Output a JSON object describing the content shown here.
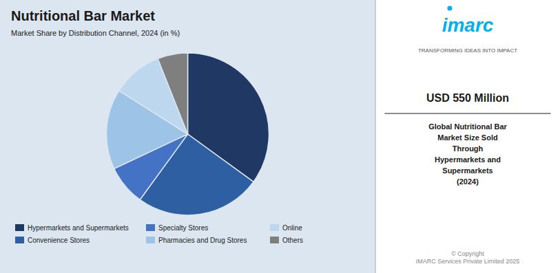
{
  "chart_data": {
    "type": "pie",
    "title": "Nutritional Bar Market",
    "subtitle": "Market Share by Distribution Channel, 2024 (in %)",
    "categories": [
      "Hypermarkets and Supermarkets",
      "Convenience Stores",
      "Specialty Stores",
      "Pharmacies and Drug Stores",
      "Online",
      "Others"
    ],
    "values": [
      35,
      25,
      8,
      16,
      10,
      6
    ],
    "colors": [
      "#1f3864",
      "#2e5fa3",
      "#4472c4",
      "#9dc3e6",
      "#bdd7ee",
      "#7f7f7f"
    ],
    "legend": "bottom",
    "annotations": [
      "imarc",
      "TRANSFORMING IDEAS INTO IMPACT",
      "USD 550 Million",
      "Global Nutritional Bar\nMarket Size Sold\nThrough\nHypermarkets and\nSupermarkets\n(2024)",
      "© Copyright\nIMARC Services Private Limited 2025"
    ]
  }
}
